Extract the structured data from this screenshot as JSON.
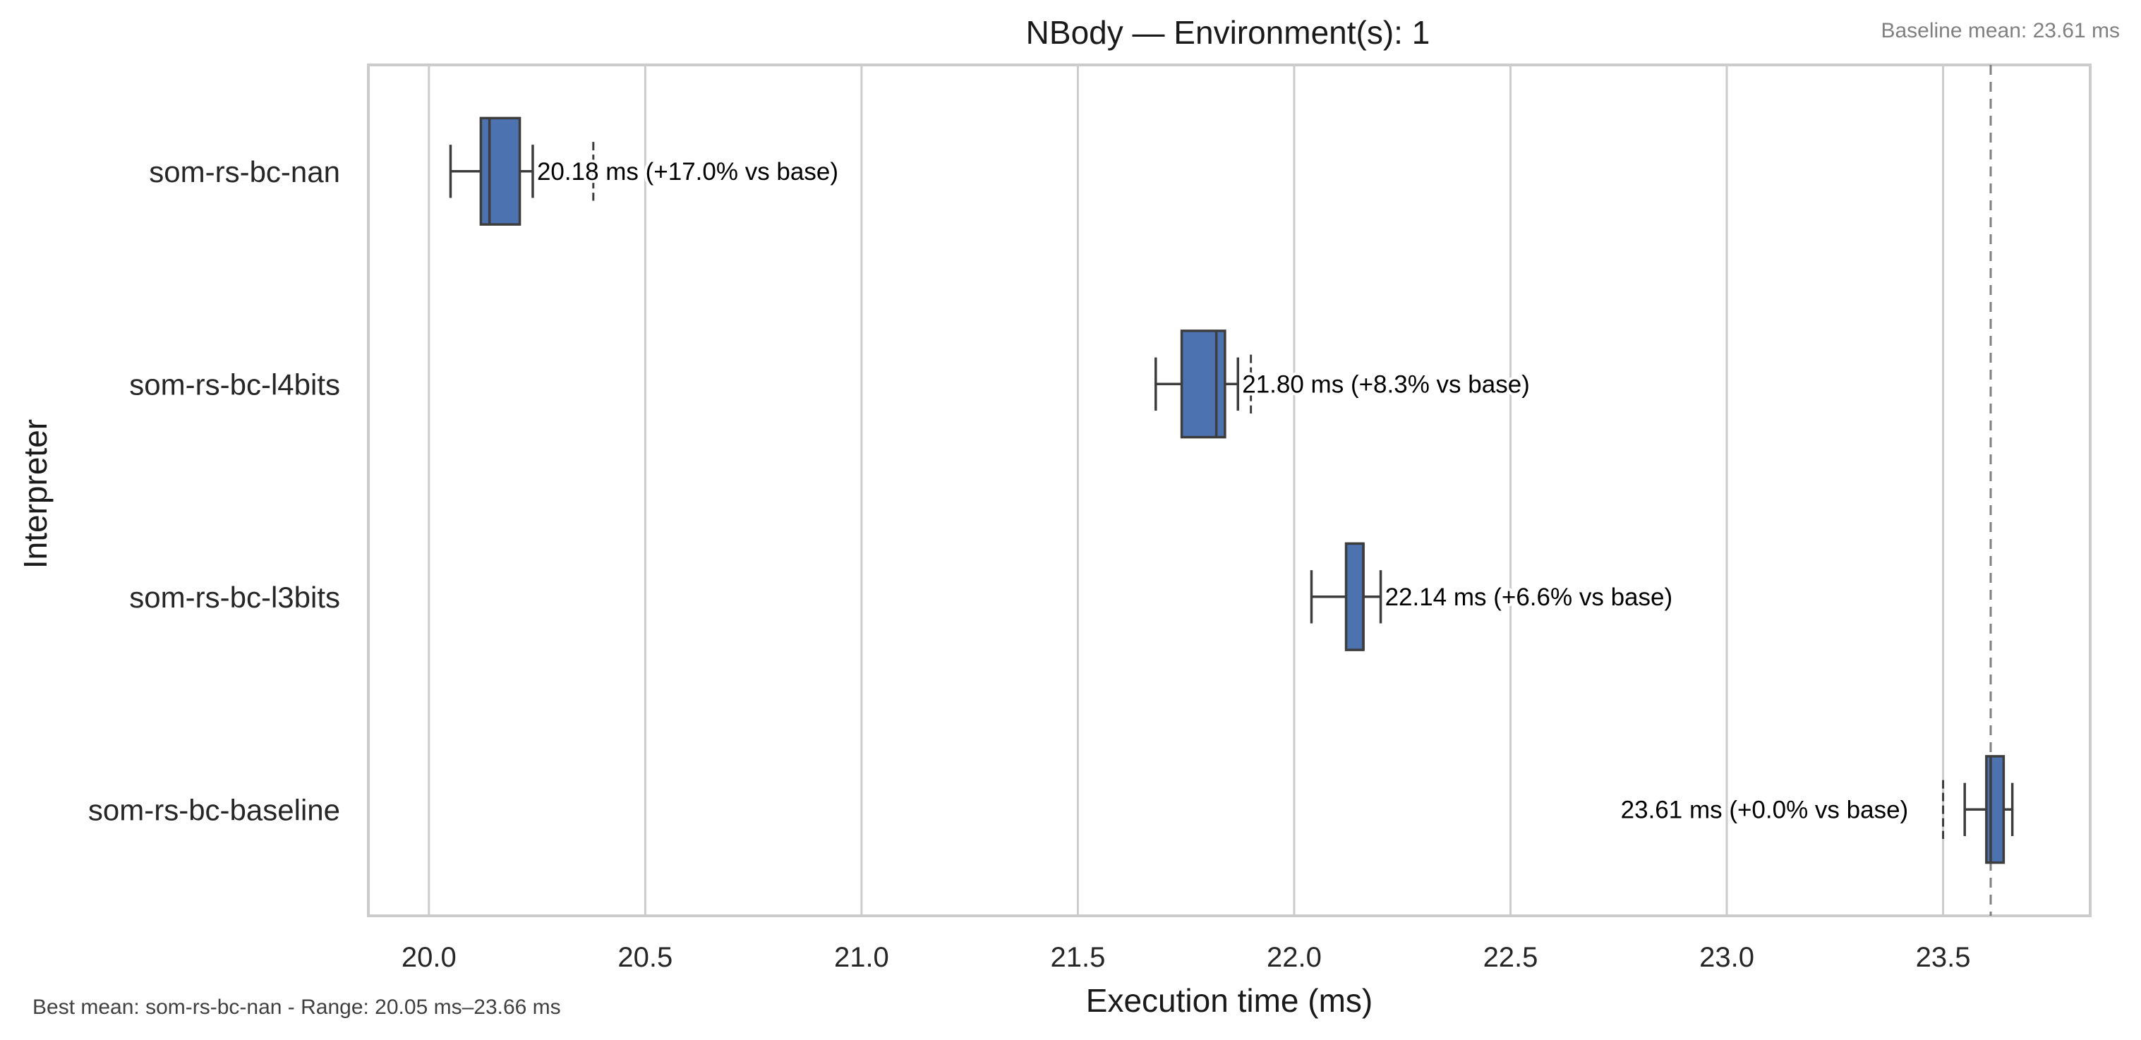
{
  "chart_data": {
    "type": "box",
    "orientation": "horizontal",
    "title": "NBody — Environment(s): 1",
    "xlabel": "Execution time (ms)",
    "ylabel": "Interpreter",
    "xlim": [
      19.86,
      23.84
    ],
    "xticks": [
      "20.0",
      "20.5",
      "21.0",
      "21.5",
      "22.0",
      "22.5",
      "23.0",
      "23.5"
    ],
    "xtick_values": [
      20.0,
      20.5,
      21.0,
      21.5,
      22.0,
      22.5,
      23.0,
      23.5
    ],
    "grid": "x",
    "baseline_note": "Baseline mean: 23.61 ms",
    "baseline_value": 23.61,
    "footer_note": "Best mean: som-rs-bc-nan - Range: 20.05 ms–23.66 ms",
    "box_color": "#4c72b0",
    "series": [
      {
        "name": "som-rs-bc-nan",
        "whisker_low": 20.05,
        "q1": 20.12,
        "median": 20.14,
        "q3": 20.21,
        "whisker_high": 20.24,
        "outliers": [
          20.38
        ],
        "mean": 20.18,
        "label": "20.18 ms  (+17.0% vs base)"
      },
      {
        "name": "som-rs-bc-l4bits",
        "whisker_low": 21.68,
        "q1": 21.74,
        "median": 21.82,
        "q3": 21.84,
        "whisker_high": 21.87,
        "outliers": [
          21.9
        ],
        "mean": 21.8,
        "label": "21.80 ms  (+8.3% vs base)"
      },
      {
        "name": "som-rs-bc-l3bits",
        "whisker_low": 22.04,
        "q1": 22.12,
        "median": 22.16,
        "q3": 22.16,
        "whisker_high": 22.2,
        "outliers": [],
        "mean": 22.14,
        "label": "22.14 ms  (+6.6% vs base)"
      },
      {
        "name": "som-rs-bc-baseline",
        "whisker_low": 23.55,
        "q1": 23.6,
        "median": 23.61,
        "q3": 23.64,
        "whisker_high": 23.66,
        "outliers": [
          23.5
        ],
        "mean": 23.61,
        "label": "23.61 ms  (+0.0% vs base)"
      }
    ]
  }
}
